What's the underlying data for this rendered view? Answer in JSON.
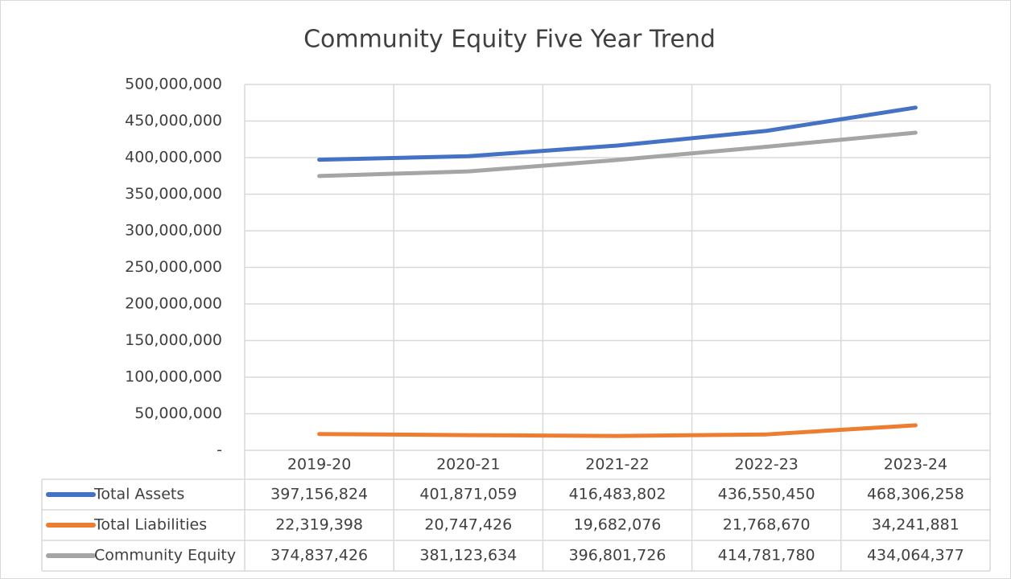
{
  "chart_data": {
    "type": "line",
    "title": "Community Equity Five Year Trend",
    "categories": [
      "2019-20",
      "2020-21",
      "2021-22",
      "2022-23",
      "2023-24"
    ],
    "series": [
      {
        "name": "Total Assets",
        "color": "#4472c4",
        "values": [
          397156824,
          401871059,
          416483802,
          436550450,
          468306258
        ],
        "value_labels": [
          "397,156,824",
          "401,871,059",
          "416,483,802",
          "436,550,450",
          "468,306,258"
        ]
      },
      {
        "name": "Total Liabilities",
        "color": "#ed7d31",
        "values": [
          22319398,
          20747426,
          19682076,
          21768670,
          34241881
        ],
        "value_labels": [
          "22,319,398",
          "20,747,426",
          "19,682,076",
          "21,768,670",
          "34,241,881"
        ]
      },
      {
        "name": "Community Equity",
        "color": "#a5a5a5",
        "values": [
          374837426,
          381123634,
          396801726,
          414781780,
          434064377
        ],
        "value_labels": [
          "374,837,426",
          "381,123,634",
          "396,801,726",
          "414,781,780",
          "434,064,377"
        ]
      }
    ],
    "ylim": [
      0,
      500000000
    ],
    "yticks": [
      {
        "value": 0,
        "label": "-"
      },
      {
        "value": 50000000,
        "label": "50,000,000"
      },
      {
        "value": 100000000,
        "label": "100,000,000"
      },
      {
        "value": 150000000,
        "label": "150,000,000"
      },
      {
        "value": 200000000,
        "label": "200,000,000"
      },
      {
        "value": 250000000,
        "label": "250,000,000"
      },
      {
        "value": 300000000,
        "label": "300,000,000"
      },
      {
        "value": 350000000,
        "label": "350,000,000"
      },
      {
        "value": 400000000,
        "label": "400,000,000"
      },
      {
        "value": 450000000,
        "label": "450,000,000"
      },
      {
        "value": 500000000,
        "label": "500,000,000"
      }
    ],
    "grid": true
  }
}
